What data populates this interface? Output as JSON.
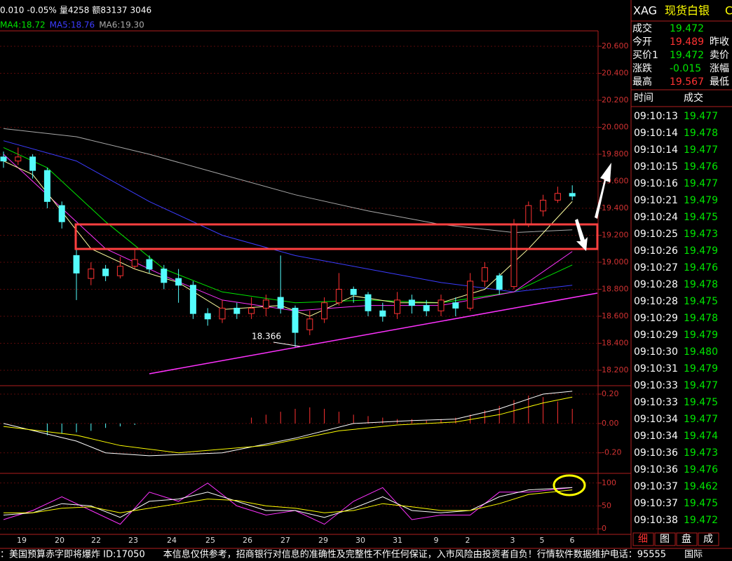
{
  "top_bar": {
    "items": [
      "0.010",
      "-0.05%",
      "量4258",
      "额83137",
      "3046"
    ],
    "ma_legend": [
      {
        "text": "MA4:18.72",
        "color": "#00e600"
      },
      {
        "text": "MA5:18.76",
        "color": "#3c3cff"
      },
      {
        "text": "MA6:19.30",
        "color": "#a8a8a8"
      }
    ]
  },
  "price_chart": {
    "ylim": [
      18.096,
      20.709
    ],
    "yticks": [
      {
        "value": 18.2,
        "label": "18.200"
      },
      {
        "value": 18.4,
        "label": "18.400"
      },
      {
        "value": 18.6,
        "label": "18.600"
      },
      {
        "value": 18.8,
        "label": "18.800"
      },
      {
        "value": 19.0,
        "label": "19.000"
      },
      {
        "value": 19.2,
        "label": "19.200"
      },
      {
        "value": 19.4,
        "label": "19.400"
      },
      {
        "value": 19.6,
        "label": "19.600"
      },
      {
        "value": 19.8,
        "label": "19.800"
      },
      {
        "value": 20.0,
        "label": "20.000"
      },
      {
        "value": 20.2,
        "label": "20.200"
      },
      {
        "value": 20.4,
        "label": "20.400"
      },
      {
        "value": 20.6,
        "label": "20.600"
      }
    ],
    "open": [
      19.78,
      19.75,
      19.78,
      19.68,
      19.42,
      19.05,
      18.88,
      18.95,
      18.9,
      18.97,
      19.02,
      18.95,
      18.88,
      18.83,
      18.62,
      18.58,
      18.66,
      18.62,
      18.66,
      18.74,
      18.66,
      18.5,
      18.58,
      18.7,
      18.8,
      18.76,
      18.64,
      18.62,
      18.72,
      18.68,
      18.64,
      18.7,
      18.66,
      18.86,
      18.9,
      18.82,
      19.28,
      19.38,
      19.46,
      19.51
    ],
    "high": [
      19.82,
      19.85,
      19.8,
      19.7,
      19.45,
      19.1,
      19.0,
      18.98,
      19.04,
      19.1,
      19.05,
      18.98,
      18.95,
      18.86,
      18.66,
      18.72,
      18.7,
      18.74,
      18.76,
      19.05,
      18.68,
      18.64,
      18.74,
      18.92,
      18.82,
      18.78,
      18.7,
      18.78,
      18.76,
      18.72,
      18.76,
      18.74,
      18.92,
      19.0,
      18.92,
      19.32,
      19.45,
      19.5,
      19.56,
      19.57
    ],
    "low": [
      19.7,
      19.72,
      19.62,
      19.4,
      19.25,
      18.72,
      18.83,
      18.86,
      18.88,
      18.95,
      18.92,
      18.8,
      18.7,
      18.58,
      18.53,
      18.55,
      18.58,
      18.58,
      18.6,
      18.62,
      18.37,
      18.46,
      18.55,
      18.68,
      18.7,
      18.6,
      18.56,
      18.58,
      18.62,
      18.6,
      18.6,
      18.6,
      18.64,
      18.82,
      18.76,
      18.8,
      19.26,
      19.34,
      19.44,
      19.46
    ],
    "close": [
      19.75,
      19.78,
      19.68,
      19.45,
      19.3,
      18.92,
      18.95,
      18.9,
      18.97,
      19.02,
      18.95,
      18.85,
      18.83,
      18.62,
      18.58,
      18.66,
      18.62,
      18.66,
      18.72,
      18.66,
      18.48,
      18.58,
      18.7,
      18.8,
      18.76,
      18.64,
      18.6,
      18.72,
      18.68,
      18.64,
      18.72,
      18.66,
      18.86,
      18.96,
      18.8,
      19.28,
      19.42,
      19.46,
      19.51,
      19.49
    ],
    "lines": [
      {
        "color": "#a8a8a8",
        "x": [
          0,
          5,
          10,
          15,
          20,
          25,
          30,
          35,
          39
        ],
        "values": [
          19.99,
          19.93,
          19.8,
          19.65,
          19.5,
          19.38,
          19.28,
          19.22,
          19.24
        ]
      },
      {
        "color": "#3c3cff",
        "x": [
          0,
          5,
          10,
          15,
          20,
          25,
          30,
          35,
          39
        ],
        "values": [
          19.9,
          19.75,
          19.45,
          19.2,
          19.05,
          18.95,
          18.85,
          18.78,
          18.83
        ]
      },
      {
        "color": "#00e600",
        "x": [
          0,
          3,
          7,
          11,
          15,
          20,
          25,
          30,
          35,
          39
        ],
        "values": [
          19.85,
          19.7,
          19.3,
          18.95,
          18.78,
          18.7,
          18.72,
          18.7,
          18.78,
          18.98
        ]
      },
      {
        "color": "#ff32ff",
        "x": [
          0,
          3,
          7,
          11,
          15,
          20,
          25,
          30,
          35,
          39
        ],
        "values": [
          19.8,
          19.5,
          19.1,
          18.9,
          18.72,
          18.64,
          18.68,
          18.68,
          18.78,
          19.08
        ]
      },
      {
        "color": "#ffffa0",
        "x": [
          0,
          2,
          6,
          9,
          12,
          15,
          19,
          21,
          24,
          27,
          30,
          33,
          36,
          39
        ],
        "values": [
          19.75,
          19.65,
          19.1,
          18.95,
          18.85,
          18.65,
          18.68,
          18.6,
          18.75,
          18.7,
          18.7,
          18.8,
          19.1,
          19.45
        ]
      }
    ],
    "annotation": 18.366
  },
  "macd": {
    "ylim": [
      -0.292,
      0.248
    ],
    "yticks": [
      {
        "value": -0.2,
        "label": "-0.20"
      },
      {
        "value": 0,
        "label": "0.00"
      },
      {
        "value": 0.2,
        "label": "0.20"
      }
    ],
    "histogram": [
      0,
      0,
      0,
      -0.08,
      -0.07,
      -0.06,
      -0.05,
      -0.03,
      -0.02,
      -0.01,
      0,
      0,
      0,
      0,
      0,
      0,
      0,
      0.04,
      0.06,
      0.08,
      0.1,
      0.11,
      0.1,
      0.08,
      0.06,
      0.05,
      0.04,
      0.03,
      0.03,
      0.02,
      0.03,
      0.04,
      0.06,
      0.09,
      0.12,
      0.16,
      0.19,
      0.18,
      0.15,
      0.1
    ],
    "lines": [
      {
        "color": "#ffffff",
        "x": [
          0,
          5,
          7,
          10,
          15,
          20,
          24,
          28,
          31,
          34,
          37,
          39
        ],
        "values": [
          0,
          -0.12,
          -0.2,
          -0.22,
          -0.2,
          -0.1,
          0,
          0.02,
          0.03,
          0.1,
          0.2,
          0.22
        ]
      },
      {
        "color": "#ffff00",
        "x": [
          0,
          5,
          8,
          12,
          18,
          23,
          27,
          31,
          34,
          37,
          39
        ],
        "values": [
          -0.02,
          -0.08,
          -0.15,
          -0.2,
          -0.15,
          -0.05,
          -0.01,
          0.01,
          0.06,
          0.14,
          0.18
        ]
      }
    ]
  },
  "kdj": {
    "ylim": [
      -9,
      118
    ],
    "yticks": [
      0,
      50,
      100
    ],
    "lines": [
      {
        "color": "#ff32ff",
        "x": [
          0,
          2,
          4,
          6,
          8,
          10,
          12,
          14,
          16,
          18,
          20,
          22,
          24,
          26,
          28,
          30,
          32,
          34,
          36,
          39
        ],
        "values": [
          20,
          40,
          70,
          40,
          10,
          80,
          60,
          100,
          50,
          30,
          40,
          10,
          60,
          90,
          20,
          30,
          30,
          80,
          80,
          90
        ]
      },
      {
        "color": "#ffffff",
        "x": [
          0,
          2,
          4,
          6,
          8,
          10,
          12,
          14,
          16,
          18,
          20,
          22,
          24,
          26,
          28,
          30,
          32,
          34,
          36,
          39
        ],
        "values": [
          30,
          35,
          55,
          50,
          25,
          60,
          65,
          80,
          60,
          40,
          40,
          25,
          45,
          70,
          40,
          35,
          40,
          70,
          85,
          90
        ]
      },
      {
        "color": "#ffff00",
        "x": [
          0,
          2,
          4,
          6,
          8,
          10,
          12,
          14,
          16,
          18,
          20,
          22,
          24,
          26,
          28,
          30,
          32,
          34,
          36,
          39
        ],
        "values": [
          35,
          35,
          45,
          48,
          35,
          45,
          55,
          65,
          62,
          50,
          45,
          35,
          40,
          55,
          48,
          40,
          40,
          55,
          75,
          85
        ]
      }
    ]
  },
  "dates": [
    "19",
    "20",
    "22",
    "23",
    "24",
    "25",
    "26",
    "27",
    "29",
    "30",
    "31",
    "9",
    "2",
    "3",
    "5",
    "6"
  ],
  "quote_panel": {
    "symbol": "XAG",
    "name": "现货白银",
    "extra": "C",
    "rows": [
      [
        "成交",
        "19.472",
        ""
      ],
      [
        "今开",
        "19.489",
        "昨收"
      ],
      [
        "买价1",
        "19.472",
        "卖价"
      ],
      [
        "涨跌",
        "-0.015",
        "涨幅"
      ],
      [
        "最高",
        "19.567",
        "最低"
      ]
    ],
    "trade_header": [
      "时间",
      "成交"
    ],
    "trades": [
      [
        "09:10:13",
        "19.477"
      ],
      [
        "09:10:14",
        "19.478"
      ],
      [
        "09:10:14",
        "19.477"
      ],
      [
        "09:10:15",
        "19.476"
      ],
      [
        "09:10:16",
        "19.477"
      ],
      [
        "09:10:21",
        "19.479"
      ],
      [
        "09:10:24",
        "19.475"
      ],
      [
        "09:10:25",
        "19.473"
      ],
      [
        "09:10:26",
        "19.479"
      ],
      [
        "09:10:27",
        "19.476"
      ],
      [
        "09:10:28",
        "19.478"
      ],
      [
        "09:10:28",
        "19.475"
      ],
      [
        "09:10:29",
        "19.478"
      ],
      [
        "09:10:29",
        "19.479"
      ],
      [
        "09:10:30",
        "19.480"
      ],
      [
        "09:10:31",
        "19.479"
      ],
      [
        "09:10:33",
        "19.477"
      ],
      [
        "09:10:33",
        "19.475"
      ],
      [
        "09:10:34",
        "19.477"
      ],
      [
        "09:10:34",
        "19.474"
      ],
      [
        "09:10:36",
        "19.473"
      ],
      [
        "09:10:36",
        "19.476"
      ],
      [
        "09:10:37",
        "19.462"
      ],
      [
        "09:10:37",
        "19.475"
      ],
      [
        "09:10:38",
        "19.472"
      ]
    ],
    "tabs": [
      "细",
      "图",
      "盘",
      "成"
    ]
  },
  "ticker": "：美国预算赤字即将爆炸 ID:17050　　本信息仅供参考，招商银行对信息的准确性及完整性不作任何保证，入市风险由投资者自负！行情软件数据维护电话：95555　　国际"
}
